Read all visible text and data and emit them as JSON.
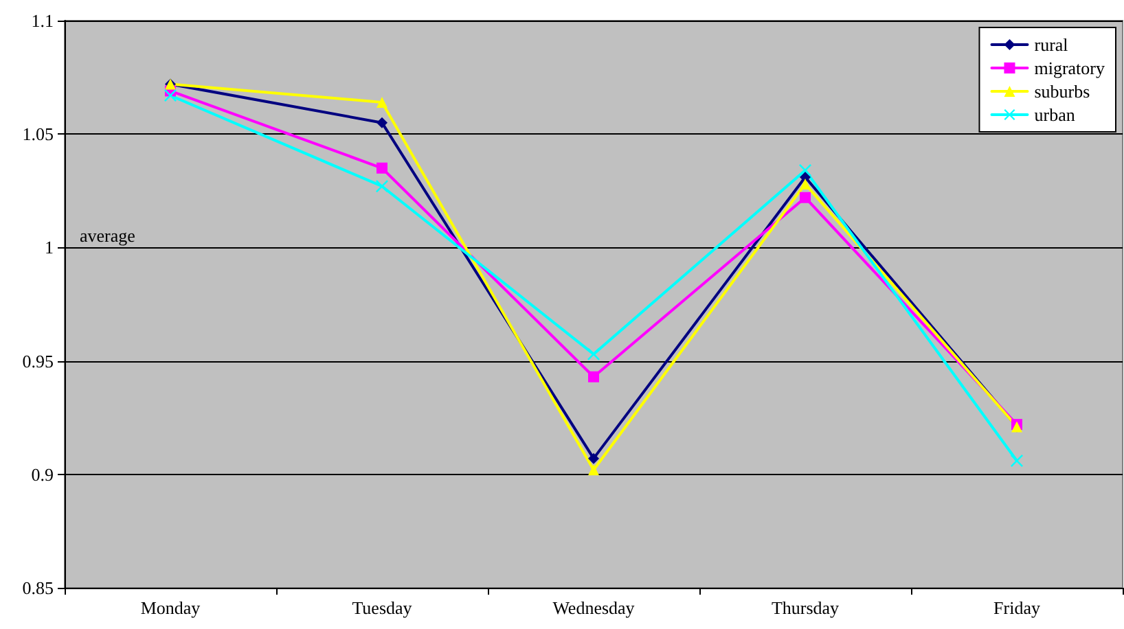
{
  "chart_data": {
    "type": "line",
    "categories": [
      "Monday",
      "Tuesday",
      "Wednesday",
      "Thursday",
      "Friday"
    ],
    "series": [
      {
        "name": "rural",
        "color": "#000080",
        "marker": "diamond",
        "values": [
          1.072,
          1.055,
          0.907,
          1.031,
          0.921
        ]
      },
      {
        "name": "migratory",
        "color": "#ff00ff",
        "marker": "square",
        "values": [
          1.069,
          1.035,
          0.943,
          1.022,
          0.922
        ]
      },
      {
        "name": "suburbs",
        "color": "#ffff00",
        "marker": "triangle",
        "values": [
          1.072,
          1.064,
          0.902,
          1.028,
          0.921
        ]
      },
      {
        "name": "urban",
        "color": "#00ffff",
        "marker": "cross",
        "values": [
          1.067,
          1.027,
          0.953,
          1.034,
          0.906
        ]
      }
    ],
    "ylim": [
      0.85,
      1.1
    ],
    "yticks": [
      0.85,
      0.9,
      0.95,
      1,
      1.05,
      1.1
    ],
    "grid": "y",
    "legend": "top right",
    "line_style": "solid",
    "annotations": [
      "average"
    ]
  }
}
